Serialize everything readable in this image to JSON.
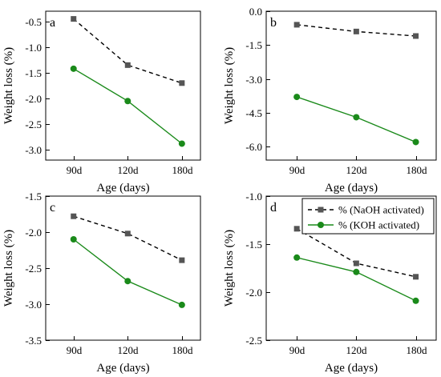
{
  "legend": {
    "entries": [
      {
        "label": "% (NaOH activated)",
        "color": "#000000",
        "marker": "square",
        "dash": true
      },
      {
        "label": "% (KOH activated)",
        "color": "#1a8a1a",
        "marker": "circle",
        "dash": false
      }
    ],
    "placement": "top-right of panel d"
  },
  "colors": {
    "naoh_line": "#000000",
    "naoh_marker": "#555555",
    "koh": "#1a8a1a"
  },
  "chart_data": [
    {
      "type": "line",
      "panel": "a",
      "categories": [
        "90d",
        "120d",
        "180d"
      ],
      "series": [
        {
          "name": "% (NaOH activated)",
          "values": [
            -0.45,
            -1.35,
            -1.7
          ]
        },
        {
          "name": "% (KOH activated)",
          "values": [
            -1.42,
            -2.05,
            -2.88
          ]
        }
      ],
      "xlabel": "Age (days)",
      "ylabel": "Weight loss (%)",
      "ylim": [
        -3.2,
        -0.3
      ],
      "yticks": [
        -0.5,
        -1.0,
        -1.5,
        -2.0,
        -2.5,
        -3.0
      ],
      "ytick_labels": [
        "-0.5",
        "-1.0",
        "-1.5",
        "-2.0",
        "-2.5",
        "-3.0"
      ],
      "legend": false,
      "grid": false
    },
    {
      "type": "line",
      "panel": "b",
      "categories": [
        "90d",
        "120d",
        "180d"
      ],
      "series": [
        {
          "name": "% (NaOH activated)",
          "values": [
            -0.6,
            -0.9,
            -1.1
          ]
        },
        {
          "name": "% (KOH activated)",
          "values": [
            -3.8,
            -4.7,
            -5.8
          ]
        }
      ],
      "xlabel": "Age (days)",
      "ylabel": "Weight loss (%)",
      "ylim": [
        -6.6,
        0.0
      ],
      "yticks": [
        0.0,
        -1.5,
        -3.0,
        -4.5,
        -6.0
      ],
      "ytick_labels": [
        "0.0",
        "-1.5",
        "-3.0",
        "-4.5",
        "-6.0"
      ],
      "legend": false,
      "grid": false
    },
    {
      "type": "line",
      "panel": "c",
      "categories": [
        "90d",
        "120d",
        "180d"
      ],
      "series": [
        {
          "name": "% (NaOH activated)",
          "values": [
            -1.78,
            -2.02,
            -2.39
          ]
        },
        {
          "name": "% (KOH activated)",
          "values": [
            -2.1,
            -2.68,
            -3.01
          ]
        }
      ],
      "xlabel": "Age (days)",
      "ylabel": "Weight loss (%)",
      "ylim": [
        -3.5,
        -1.5
      ],
      "yticks": [
        -1.5,
        -2.0,
        -2.5,
        -3.0,
        -3.5
      ],
      "ytick_labels": [
        "-1.5",
        "-2.0",
        "-2.5",
        "-3.0",
        "-3.5"
      ],
      "legend": false,
      "grid": false
    },
    {
      "type": "line",
      "panel": "d",
      "categories": [
        "90d",
        "120d",
        "180d"
      ],
      "series": [
        {
          "name": "% (NaOH activated)",
          "values": [
            -1.34,
            -1.7,
            -1.84
          ]
        },
        {
          "name": "% (KOH activated)",
          "values": [
            -1.64,
            -1.79,
            -2.09
          ]
        }
      ],
      "xlabel": "Age (days)",
      "ylabel": "Weight loss (%)",
      "ylim": [
        -2.5,
        -1.0
      ],
      "yticks": [
        -1.0,
        -1.5,
        -2.0,
        -2.5
      ],
      "ytick_labels": [
        "-1.0",
        "-1.5",
        "-2.0",
        "-2.5"
      ],
      "legend": true,
      "grid": false
    }
  ]
}
